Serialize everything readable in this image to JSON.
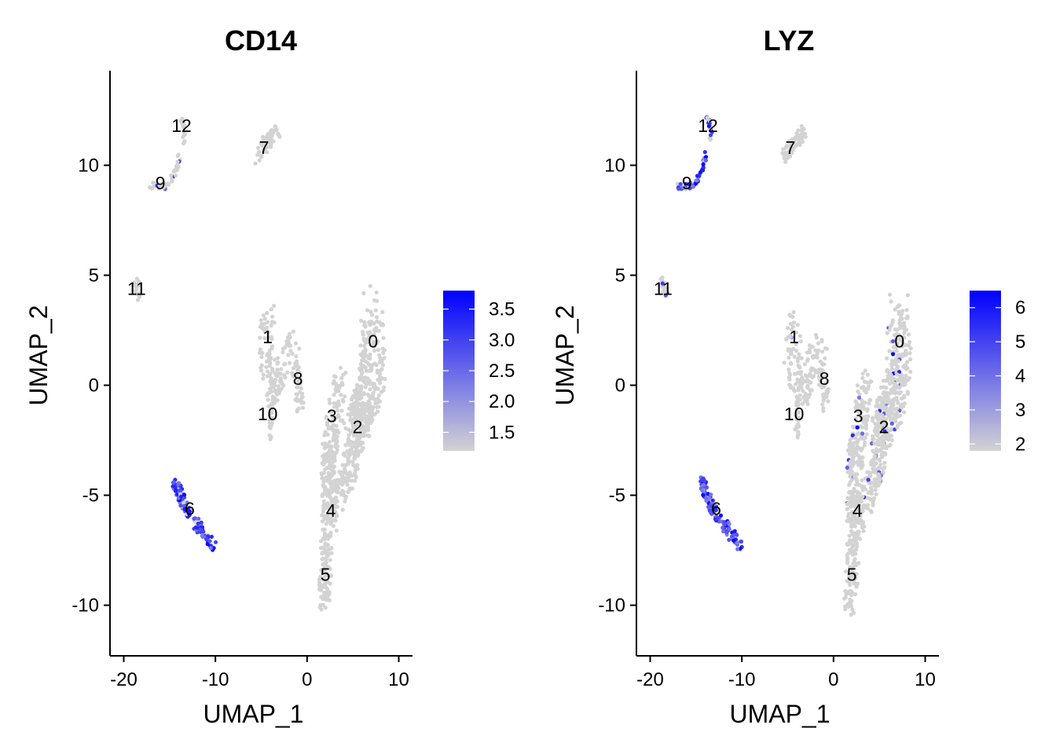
{
  "chart_data": [
    {
      "type": "scatter",
      "title": "CD14",
      "xlabel": "UMAP_1",
      "ylabel": "UMAP_2",
      "xlim": [
        -21.5,
        11.5
      ],
      "ylim": [
        -12.3,
        14.3
      ],
      "xticks": [
        -20,
        -10,
        0,
        10
      ],
      "yticks": [
        -10,
        -5,
        0,
        5,
        10
      ],
      "grid": false,
      "legend": "right",
      "color_scale": {
        "low": "#d3d3d3",
        "high": "#0000ff",
        "min": 1.2,
        "max": 3.8,
        "breaks": [
          1.5,
          2.0,
          2.5,
          3.0,
          3.5
        ],
        "break_labels": [
          "1.5",
          "2.0",
          "2.5",
          "3.0",
          "3.5"
        ]
      },
      "cluster_labels": [
        {
          "text": "0",
          "x": 7.2,
          "y": 2.0
        },
        {
          "text": "1",
          "x": -4.3,
          "y": 2.2
        },
        {
          "text": "2",
          "x": 5.5,
          "y": -1.9
        },
        {
          "text": "3",
          "x": 2.7,
          "y": -1.4
        },
        {
          "text": "4",
          "x": 2.6,
          "y": -5.7
        },
        {
          "text": "5",
          "x": 2.0,
          "y": -8.6
        },
        {
          "text": "6",
          "x": -12.8,
          "y": -5.6
        },
        {
          "text": "7",
          "x": -4.7,
          "y": 10.8
        },
        {
          "text": "8",
          "x": -1.0,
          "y": 0.3
        },
        {
          "text": "9",
          "x": -16.0,
          "y": 9.2
        },
        {
          "text": "10",
          "x": -4.3,
          "y": -1.3
        },
        {
          "text": "11",
          "x": -18.6,
          "y": 4.4
        },
        {
          "text": "12",
          "x": -13.7,
          "y": 11.8
        }
      ],
      "cluster_expression": {
        "0": 0,
        "1": 0,
        "2": 0,
        "3": 0,
        "4": 0,
        "5": 0,
        "6": 0.85,
        "7": 0,
        "8": 0,
        "9": 0.06,
        "10": 0,
        "11": 0,
        "12": 0.1
      }
    },
    {
      "type": "scatter",
      "title": "LYZ",
      "xlabel": "UMAP_1",
      "ylabel": "UMAP_2",
      "xlim": [
        -21.5,
        11.5
      ],
      "ylim": [
        -12.3,
        14.3
      ],
      "xticks": [
        -20,
        -10,
        0,
        10
      ],
      "yticks": [
        -10,
        -5,
        0,
        5,
        10
      ],
      "grid": false,
      "legend": "right",
      "color_scale": {
        "low": "#d3d3d3",
        "high": "#0000ff",
        "min": 1.8,
        "max": 6.5,
        "breaks": [
          2,
          3,
          4,
          5,
          6
        ],
        "break_labels": [
          "2",
          "3",
          "4",
          "5",
          "6"
        ]
      },
      "cluster_labels": [
        {
          "text": "0",
          "x": 7.2,
          "y": 2.0
        },
        {
          "text": "1",
          "x": -4.3,
          "y": 2.2
        },
        {
          "text": "2",
          "x": 5.5,
          "y": -1.9
        },
        {
          "text": "3",
          "x": 2.7,
          "y": -1.4
        },
        {
          "text": "4",
          "x": 2.6,
          "y": -5.7
        },
        {
          "text": "5",
          "x": 2.0,
          "y": -8.6
        },
        {
          "text": "6",
          "x": -12.8,
          "y": -5.6
        },
        {
          "text": "7",
          "x": -4.7,
          "y": 10.8
        },
        {
          "text": "8",
          "x": -1.0,
          "y": 0.3
        },
        {
          "text": "9",
          "x": -16.0,
          "y": 9.2
        },
        {
          "text": "10",
          "x": -4.3,
          "y": -1.3
        },
        {
          "text": "11",
          "x": -18.6,
          "y": 4.4
        },
        {
          "text": "12",
          "x": -13.7,
          "y": 11.8
        }
      ],
      "cluster_expression": {
        "0": 0.01,
        "1": 0.03,
        "2": 0.01,
        "3": 0.01,
        "4": 0.02,
        "5": 0,
        "6": 0.95,
        "7": 0,
        "8": 0,
        "9": 0.95,
        "10": 0,
        "11": 0.2,
        "12": 0.5
      }
    }
  ]
}
